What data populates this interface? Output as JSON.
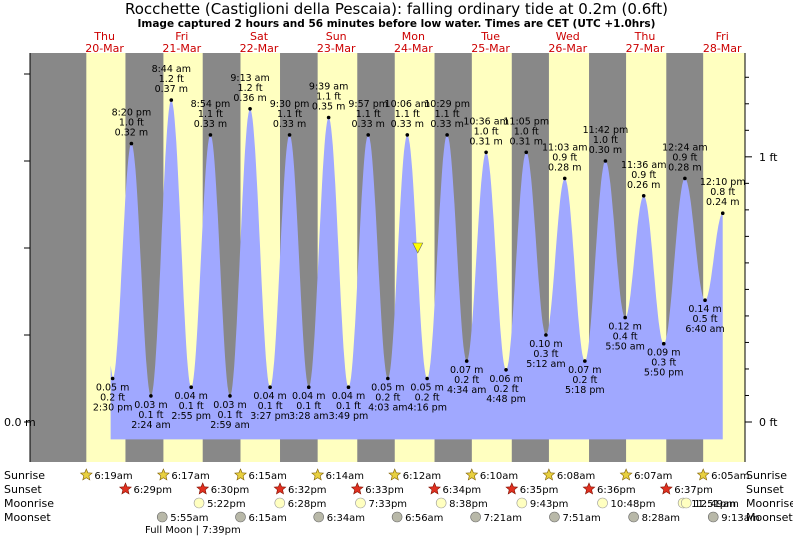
{
  "header": {
    "title": "Rocchette (Castiglioni della Pescaia): falling  ordinary tide at 0.2m (0.6ft)",
    "subtitle": "Image captured 2 hours and 56 minutes before low water. Times are CET (UTC +1.0hrs)"
  },
  "colors": {
    "night": "#888888",
    "day": "#ffffc0",
    "tide": "#a0a8ff",
    "day_label": "#cc0000",
    "now_marker": "#ffff00"
  },
  "chart_data": {
    "type": "area",
    "title": "Rocchette (Castiglioni della Pescaia): falling  ordinary tide at 0.2m (0.6ft)",
    "x_unit": "hours since Thu 20-Mar 00:00 CET",
    "y_unit": "m",
    "y_axis_left": {
      "ticks": [
        {
          "value": 0.0,
          "label": "0.0 m"
        }
      ]
    },
    "y_axis_right": {
      "ticks": [
        {
          "value": 0.0,
          "label": "0 ft"
        },
        {
          "value": 0.3048,
          "label": "1 ft"
        }
      ]
    },
    "x_range_hours": [
      0,
      216
    ],
    "y_range_m": [
      -0.02,
      0.41
    ],
    "days": [
      {
        "weekday": "Thu",
        "date": "20-Mar",
        "sunrise": "6:19am",
        "sunset": "6:29pm",
        "moonrise": "",
        "moonset": ""
      },
      {
        "weekday": "Fri",
        "date": "21-Mar",
        "sunrise": "6:17am",
        "sunset": "6:30pm",
        "moonrise": "5:22pm",
        "moonset": "5:55am"
      },
      {
        "weekday": "Sat",
        "date": "22-Mar",
        "sunrise": "6:15am",
        "sunset": "6:32pm",
        "moonrise": "6:28pm",
        "moonset": "6:15am"
      },
      {
        "weekday": "Sun",
        "date": "23-Mar",
        "sunrise": "6:14am",
        "sunset": "6:33pm",
        "moonrise": "7:33pm",
        "moonset": "6:34am"
      },
      {
        "weekday": "Mon",
        "date": "24-Mar",
        "sunrise": "6:12am",
        "sunset": "6:34pm",
        "moonrise": "8:38pm",
        "moonset": "6:56am"
      },
      {
        "weekday": "Tue",
        "date": "25-Mar",
        "sunrise": "6:10am",
        "sunset": "6:35pm",
        "moonrise": "9:43pm",
        "moonset": "7:21am"
      },
      {
        "weekday": "Wed",
        "date": "26-Mar",
        "sunrise": "6:08am",
        "sunset": "6:36pm",
        "moonrise": "10:48pm",
        "moonset": "7:51am"
      },
      {
        "weekday": "Thu",
        "date": "27-Mar",
        "sunrise": "6:07am",
        "sunset": "6:37pm",
        "moonrise": "11:51pm",
        "moonset": "8:28am"
      },
      {
        "weekday": "Fri",
        "date": "28-Mar",
        "sunrise": "6:05am",
        "sunset": "",
        "moonrise": "12:49am",
        "moonset": "9:13am"
      }
    ],
    "tide_extremes": [
      {
        "kind": "low",
        "hour": 14.5,
        "m": 0.05,
        "time": "2:30 pm",
        "ft": "0.2 ft",
        "height": "0.05 m"
      },
      {
        "kind": "high",
        "hour": 20.33,
        "m": 0.32,
        "time": "8:20 pm",
        "ft": "1.0 ft",
        "height": "0.32 m"
      },
      {
        "kind": "low",
        "hour": 26.4,
        "m": 0.03,
        "time": "2:24 am",
        "ft": "0.1 ft",
        "height": "0.03 m"
      },
      {
        "kind": "high",
        "hour": 32.73,
        "m": 0.37,
        "time": "8:44 am",
        "ft": "1.2 ft",
        "height": "0.37 m"
      },
      {
        "kind": "low",
        "hour": 38.92,
        "m": 0.04,
        "time": "2:55 pm",
        "ft": "0.1 ft",
        "height": "0.04 m"
      },
      {
        "kind": "high",
        "hour": 44.9,
        "m": 0.33,
        "time": "8:54 pm",
        "ft": "1.1 ft",
        "height": "0.33 m"
      },
      {
        "kind": "low",
        "hour": 50.98,
        "m": 0.03,
        "time": "2:59 am",
        "ft": "0.1 ft",
        "height": "0.03 m"
      },
      {
        "kind": "high",
        "hour": 57.22,
        "m": 0.36,
        "time": "9:13 am",
        "ft": "1.2 ft",
        "height": "0.36 m"
      },
      {
        "kind": "low",
        "hour": 63.45,
        "m": 0.04,
        "time": "3:27 pm",
        "ft": "0.1 ft",
        "height": "0.04 m"
      },
      {
        "kind": "high",
        "hour": 69.5,
        "m": 0.33,
        "time": "9:30 pm",
        "ft": "1.1 ft",
        "height": "0.33 m"
      },
      {
        "kind": "low",
        "hour": 75.47,
        "m": 0.04,
        "time": "3:28 am",
        "ft": "0.1 ft",
        "height": "0.04 m"
      },
      {
        "kind": "high",
        "hour": 81.65,
        "m": 0.35,
        "time": "9:39 am",
        "ft": "1.1 ft",
        "height": "0.35 m"
      },
      {
        "kind": "low",
        "hour": 87.82,
        "m": 0.04,
        "time": "3:49 pm",
        "ft": "0.1 ft",
        "height": "0.04 m"
      },
      {
        "kind": "high",
        "hour": 93.95,
        "m": 0.33,
        "time": "9:57 pm",
        "ft": "1.1 ft",
        "height": "0.33 m"
      },
      {
        "kind": "low",
        "hour": 100.05,
        "m": 0.05,
        "time": "4:03 am",
        "ft": "0.2 ft",
        "height": "0.05 m"
      },
      {
        "kind": "high",
        "hour": 106.1,
        "m": 0.33,
        "time": "10:06 am",
        "ft": "1.1 ft",
        "height": "0.33 m"
      },
      {
        "kind": "low",
        "hour": 112.27,
        "m": 0.05,
        "time": "4:16 pm",
        "ft": "0.2 ft",
        "height": "0.05 m"
      },
      {
        "kind": "high",
        "hour": 118.48,
        "m": 0.33,
        "time": "10:29 pm",
        "ft": "1.1 ft",
        "height": "0.33 m"
      },
      {
        "kind": "low",
        "hour": 124.57,
        "m": 0.07,
        "time": "4:34 am",
        "ft": "0.2 ft",
        "height": "0.07 m"
      },
      {
        "kind": "high",
        "hour": 130.6,
        "m": 0.31,
        "time": "10:36 am",
        "ft": "1.0 ft",
        "height": "0.31 m"
      },
      {
        "kind": "low",
        "hour": 136.8,
        "m": 0.06,
        "time": "4:48 pm",
        "ft": "0.2 ft",
        "height": "0.06 m"
      },
      {
        "kind": "high",
        "hour": 143.08,
        "m": 0.31,
        "time": "11:05 pm",
        "ft": "1.0 ft",
        "height": "0.31 m"
      },
      {
        "kind": "low",
        "hour": 149.2,
        "m": 0.1,
        "time": "5:12 am",
        "ft": "0.3 ft",
        "height": "0.10 m"
      },
      {
        "kind": "high",
        "hour": 155.05,
        "m": 0.28,
        "time": "11:03 am",
        "ft": "0.9 ft",
        "height": "0.28 m"
      },
      {
        "kind": "low",
        "hour": 161.3,
        "m": 0.07,
        "time": "5:18 pm",
        "ft": "0.2 ft",
        "height": "0.07 m"
      },
      {
        "kind": "high",
        "hour": 167.7,
        "m": 0.3,
        "time": "11:42 pm",
        "ft": "1.0 ft",
        "height": "0.30 m"
      },
      {
        "kind": "low",
        "hour": 173.83,
        "m": 0.12,
        "time": "5:50 am",
        "ft": "0.4 ft",
        "height": "0.12 m"
      },
      {
        "kind": "high",
        "hour": 179.6,
        "m": 0.26,
        "time": "11:36 am",
        "ft": "0.9 ft",
        "height": "0.26 m"
      },
      {
        "kind": "low",
        "hour": 185.83,
        "m": 0.09,
        "time": "5:50 pm",
        "ft": "0.3 ft",
        "height": "0.09 m"
      },
      {
        "kind": "high",
        "hour": 192.4,
        "m": 0.28,
        "time": "12:24 am",
        "ft": "0.9 ft",
        "height": "0.28 m"
      },
      {
        "kind": "low",
        "hour": 198.67,
        "m": 0.14,
        "time": "6:40 am",
        "ft": "0.5 ft",
        "height": "0.14 m"
      },
      {
        "kind": "high",
        "hour": 204.17,
        "m": 0.24,
        "time": "12:10 pm",
        "ft": "0.8 ft",
        "height": "0.24 m"
      }
    ],
    "now_hour": 109.35,
    "now_m": 0.2,
    "full_moon_note": "Full Moon | 7:39pm"
  },
  "legend_rows": {
    "sunrise": "Sunrise",
    "sunset": "Sunset",
    "moonrise": "Moonrise",
    "moonset": "Moonset"
  }
}
